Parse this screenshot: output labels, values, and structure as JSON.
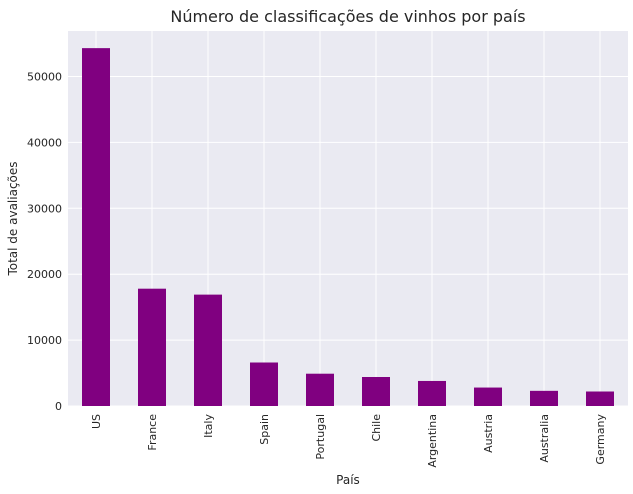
{
  "chart_data": {
    "type": "bar",
    "title": "Número de classificações de vinhos por país",
    "xlabel": "País",
    "ylabel": "Total de avaliações",
    "categories": [
      "US",
      "France",
      "Italy",
      "Spain",
      "Portugal",
      "Chile",
      "Argentina",
      "Austria",
      "Australia",
      "Germany"
    ],
    "values": [
      54300,
      17800,
      16900,
      6600,
      4900,
      4400,
      3800,
      2800,
      2300,
      2200
    ],
    "ylim": [
      0,
      56900
    ],
    "yticks": [
      0,
      10000,
      20000,
      30000,
      40000,
      50000
    ],
    "grid": true,
    "colors": {
      "bar": "#800080",
      "background": "#eaeaf2",
      "grid": "#ffffff",
      "text": "#262626"
    }
  }
}
